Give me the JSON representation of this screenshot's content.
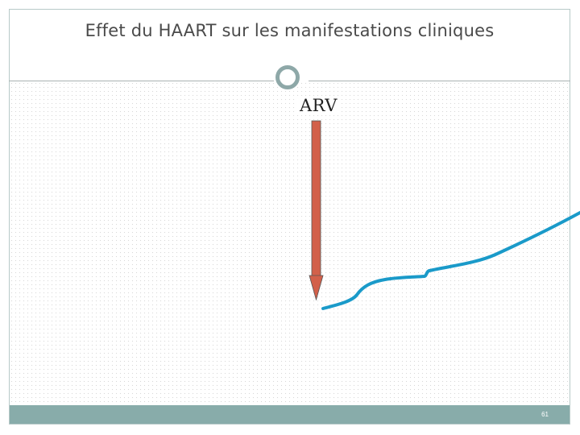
{
  "slide": {
    "title": "Effet du HAART sur les manifestations cliniques",
    "page_number": "61"
  },
  "diagram": {
    "arrow_label": "ARV",
    "arrow_color": "#d2604a",
    "curve_color": "#1a9ac9",
    "accent_color": "#88acaa"
  }
}
